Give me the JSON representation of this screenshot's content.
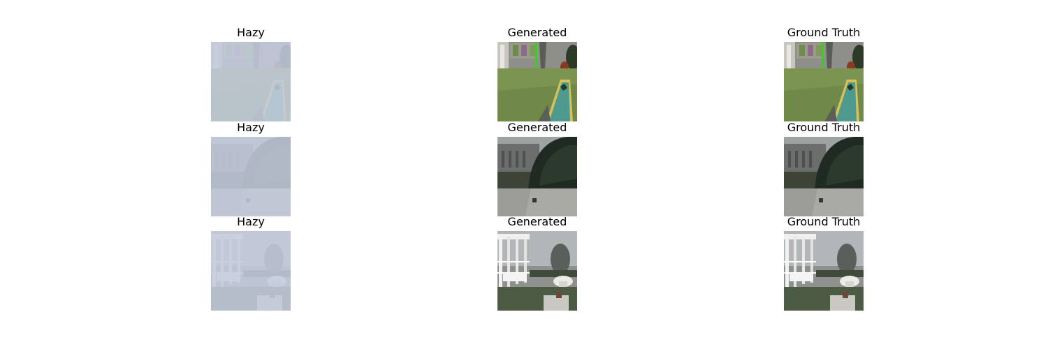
{
  "figure": {
    "rows": [
      {
        "panels": [
          {
            "title": "Hazy",
            "kind": "hazy",
            "scene": "putting-green"
          },
          {
            "title": "Generated",
            "kind": "clear",
            "scene": "putting-green"
          },
          {
            "title": "Ground Truth",
            "kind": "clear",
            "scene": "putting-green"
          }
        ]
      },
      {
        "panels": [
          {
            "title": "Hazy",
            "kind": "hazy",
            "scene": "hedge-garden"
          },
          {
            "title": "Generated",
            "kind": "clear",
            "scene": "hedge-garden"
          },
          {
            "title": "Ground Truth",
            "kind": "clear",
            "scene": "hedge-garden"
          }
        ]
      },
      {
        "panels": [
          {
            "title": "Hazy",
            "kind": "hazy",
            "scene": "white-pavilion"
          },
          {
            "title": "Generated",
            "kind": "clear",
            "scene": "white-pavilion"
          },
          {
            "title": "Ground Truth",
            "kind": "clear",
            "scene": "white-pavilion"
          }
        ]
      }
    ]
  }
}
